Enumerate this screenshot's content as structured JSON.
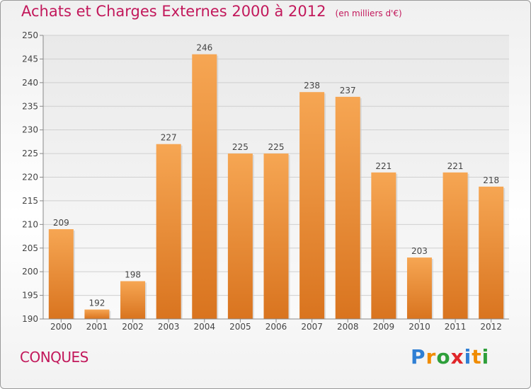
{
  "title": "Achats et Charges Externes 2000 à 2012",
  "subtitle": "(en milliers d'€)",
  "location": "CONQUES",
  "brand": {
    "letters": [
      "P",
      "r",
      "o",
      "x",
      "i",
      "t",
      "i"
    ],
    "colors": [
      "#2f7fd4",
      "#f08c00",
      "#2e9f3a",
      "#e0262a",
      "#2f7fd4",
      "#f08c00",
      "#2e9f3a"
    ]
  },
  "colors": {
    "bar_top": "#f6a653",
    "bar_bottom": "#d9741f",
    "grid": "#cfcfcf",
    "axis_text": "#444444"
  },
  "chart_data": {
    "type": "bar",
    "categories": [
      "2000",
      "2001",
      "2002",
      "2003",
      "2004",
      "2005",
      "2006",
      "2007",
      "2008",
      "2009",
      "2010",
      "2011",
      "2012"
    ],
    "values": [
      209,
      192,
      198,
      227,
      246,
      225,
      225,
      238,
      237,
      221,
      203,
      221,
      218
    ],
    "data_labels": [
      "209",
      "192",
      "198",
      "227",
      "246",
      "225",
      "225",
      "238",
      "237",
      "221",
      "203",
      "221",
      "218"
    ],
    "ylim": [
      190,
      250
    ],
    "yticks": [
      190,
      195,
      200,
      205,
      210,
      215,
      220,
      225,
      230,
      235,
      240,
      245,
      250
    ],
    "grid": true,
    "xlabel": "",
    "ylabel": ""
  }
}
